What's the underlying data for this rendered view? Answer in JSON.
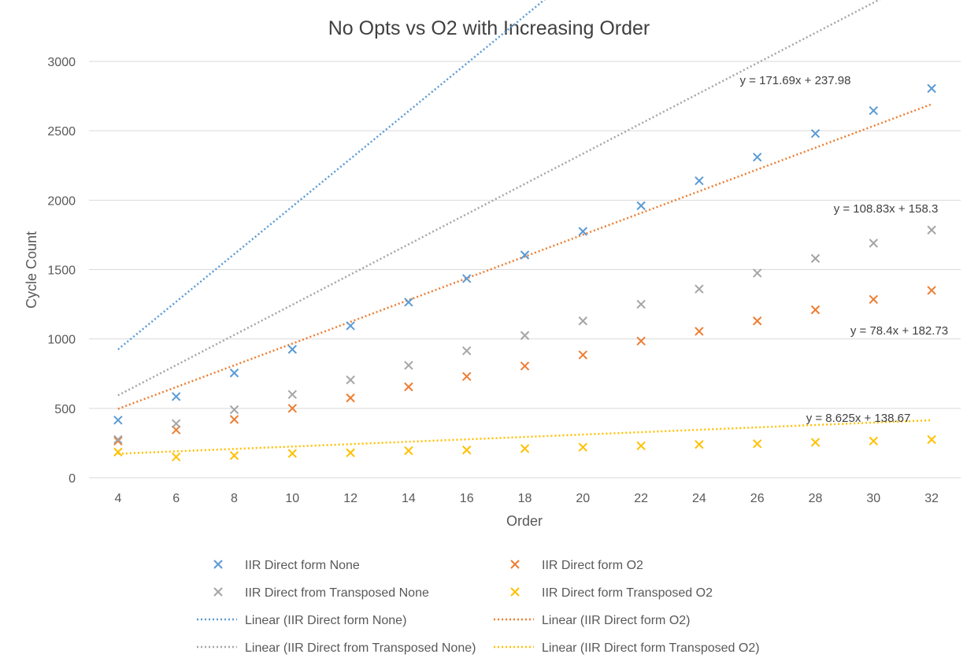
{
  "chart_data": {
    "type": "scatter",
    "title": "No Opts vs O2 with Increasing Order",
    "xlabel": "Order",
    "ylabel": "Cycle Count",
    "xlim": [
      3,
      33
    ],
    "ylim": [
      0,
      3000
    ],
    "xticks": [
      4,
      6,
      8,
      10,
      12,
      14,
      16,
      18,
      20,
      22,
      24,
      26,
      28,
      30,
      32
    ],
    "yticks": [
      0,
      500,
      1000,
      1500,
      2000,
      2500,
      3000
    ],
    "grid": true,
    "legend_position": "bottom",
    "x": [
      4,
      6,
      8,
      10,
      12,
      14,
      16,
      18,
      20,
      22,
      24,
      26,
      28,
      30,
      32
    ],
    "series": [
      {
        "name": "IIR Direct form None",
        "color": "#5B9BD5",
        "values": [
          415,
          585,
          755,
          925,
          1095,
          1265,
          1435,
          1605,
          1775,
          1960,
          2140,
          2310,
          2480,
          2645,
          2805
        ],
        "trendline": {
          "name": "Linear (IIR Direct form None)",
          "slope": 171.69,
          "intercept": 237.98,
          "equation": "y = 171.69x + 237.98"
        }
      },
      {
        "name": "IIR Direct form O2",
        "color": "#ED7D31",
        "values": [
          265,
          345,
          420,
          500,
          575,
          655,
          730,
          805,
          885,
          985,
          1055,
          1130,
          1210,
          1285,
          1350
        ],
        "trendline": {
          "name": "Linear (IIR Direct form O2)",
          "slope": 78.4,
          "intercept": 182.73,
          "equation": "y = 78.4x + 182.73"
        }
      },
      {
        "name": "IIR Direct from Transposed None",
        "color": "#A5A5A5",
        "values": [
          275,
          390,
          490,
          600,
          705,
          810,
          915,
          1025,
          1130,
          1250,
          1360,
          1475,
          1580,
          1690,
          1785
        ],
        "trendline": {
          "name": "Linear (IIR Direct from Transposed None)",
          "slope": 108.83,
          "intercept": 158.3,
          "equation": "y = 108.83x + 158.3"
        }
      },
      {
        "name": "IIR Direct form Transposed O2",
        "color": "#FFC000",
        "values": [
          185,
          150,
          160,
          175,
          180,
          195,
          200,
          210,
          220,
          230,
          240,
          245,
          255,
          265,
          275
        ],
        "trendline": {
          "name": "Linear (IIR Direct form Transposed O2)",
          "slope": 8.625,
          "intercept": 138.67,
          "equation": "y = 8.625x + 138.67"
        }
      }
    ]
  }
}
